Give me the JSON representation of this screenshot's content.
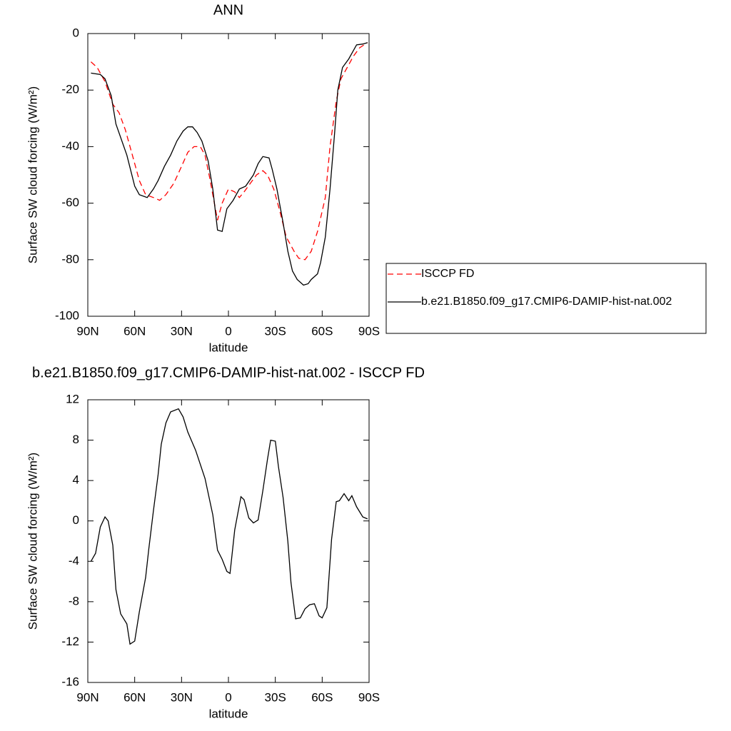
{
  "chart_data": [
    {
      "type": "line",
      "title": "ANN",
      "xlabel": "latitude",
      "ylabel": "Surface SW cloud forcing (W/m²)",
      "xlim": [
        90,
        -90
      ],
      "xticks": [
        {
          "value": 90,
          "label": "90N"
        },
        {
          "value": 60,
          "label": "60N"
        },
        {
          "value": 30,
          "label": "30N"
        },
        0,
        {
          "value": -30,
          "label": "30S"
        },
        {
          "value": -60,
          "label": "60S"
        },
        {
          "value": -90,
          "label": "90S"
        }
      ],
      "ylim": [
        -100,
        0
      ],
      "yticks": [
        0,
        -20,
        -40,
        -60,
        -80,
        -100
      ],
      "legend": "right",
      "series": [
        {
          "name": "ISCCP FD",
          "color": "#ff0000",
          "dash": true,
          "x": [
            88,
            84,
            79,
            74,
            70,
            66,
            61,
            57,
            53,
            48,
            44,
            40,
            35,
            30,
            26,
            22,
            18,
            15,
            12,
            7,
            4,
            0,
            -4,
            -7,
            -10,
            -14,
            -18,
            -22,
            -25,
            -29,
            -33,
            -37,
            -42,
            -45,
            -49,
            -53,
            -57,
            -62,
            -65,
            -69,
            -72,
            -76,
            -80,
            -84,
            -89
          ],
          "values": [
            -10,
            -12,
            -17,
            -25,
            -28,
            -34,
            -44,
            -52,
            -57,
            -58,
            -59,
            -57,
            -53,
            -47,
            -42,
            -40,
            -40,
            -43,
            -51,
            -66,
            -60,
            -55,
            -56,
            -58,
            -56,
            -53,
            -50,
            -48.5,
            -50,
            -55,
            -63,
            -72,
            -77,
            -79.5,
            -80,
            -77,
            -70,
            -58,
            -40,
            -24,
            -16,
            -12,
            -8,
            -5,
            -3.2
          ]
        },
        {
          "name": "b.e21.B1850.f09_g17.CMIP6-DAMIP-hist-nat.002",
          "color": "#000000",
          "dash": false,
          "x": [
            88,
            82,
            79,
            75,
            72,
            65,
            60,
            57,
            52,
            48,
            45,
            41,
            37,
            33,
            29,
            26,
            23,
            20,
            17,
            13,
            10,
            7,
            4,
            1,
            -3,
            -7,
            -11,
            -16,
            -19,
            -22,
            -26,
            -28,
            -31,
            -35,
            -38,
            -41,
            -44,
            -48,
            -51,
            -53,
            -57,
            -59,
            -62,
            -65,
            -68,
            -70,
            -73,
            -77,
            -79,
            -82,
            -86,
            -89
          ],
          "values": [
            -14,
            -14.5,
            -16,
            -22,
            -32,
            -43,
            -54,
            -57,
            -58,
            -55,
            -52,
            -47,
            -43,
            -38,
            -34.5,
            -33,
            -33,
            -35,
            -38,
            -45,
            -55,
            -69.5,
            -70,
            -62,
            -59,
            -55,
            -54,
            -50,
            -46,
            -43.5,
            -44,
            -48,
            -55,
            -67,
            -77,
            -84,
            -87,
            -89,
            -88.5,
            -87,
            -85,
            -81,
            -72,
            -55,
            -35,
            -20,
            -12,
            -9,
            -7,
            -4,
            -3.7,
            -3.2
          ]
        }
      ]
    },
    {
      "type": "line",
      "title": "b.e21.B1850.f09_g17.CMIP6-DAMIP-hist-nat.002 - ISCCP FD",
      "xlabel": "latitude",
      "ylabel": "Surface SW cloud forcing (W/m²)",
      "xlim": [
        90,
        -90
      ],
      "xticks": [
        {
          "value": 90,
          "label": "90N"
        },
        {
          "value": 60,
          "label": "60N"
        },
        {
          "value": 30,
          "label": "30N"
        },
        0,
        {
          "value": -30,
          "label": "30S"
        },
        {
          "value": -60,
          "label": "60S"
        },
        {
          "value": -90,
          "label": "90S"
        }
      ],
      "ylim": [
        -16,
        12
      ],
      "yticks": [
        12,
        8,
        4,
        0,
        -4,
        -8,
        -12,
        -16
      ],
      "series": [
        {
          "color": "#000000",
          "dash": false,
          "x": [
            88,
            85,
            82,
            79,
            77,
            74,
            72,
            69,
            65,
            63,
            60,
            57,
            53,
            51,
            48,
            45,
            43,
            40,
            37,
            32,
            29,
            26,
            21,
            15,
            10,
            7,
            4,
            1,
            -1,
            -4,
            -8,
            -10,
            -13,
            -16,
            -19,
            -22,
            -25,
            -27,
            -30,
            -32,
            -35,
            -38,
            -40,
            -43,
            -46,
            -49,
            -52,
            -55,
            -58,
            -60,
            -63,
            -66,
            -69,
            -71,
            -74,
            -77,
            -79,
            -82,
            -86,
            -89
          ],
          "values": [
            -4,
            -3.2,
            -0.6,
            0.4,
            0,
            -2.4,
            -6.8,
            -9.2,
            -10.2,
            -12.2,
            -11.9,
            -9,
            -5.6,
            -2.8,
            1,
            4.6,
            7.6,
            9.7,
            10.8,
            11.1,
            10.3,
            8.8,
            7,
            4.2,
            0.6,
            -2.9,
            -3.8,
            -5,
            -5.2,
            -0.9,
            2.4,
            2.1,
            0.3,
            -0.2,
            0.1,
            3,
            6.1,
            8,
            7.9,
            5.4,
            2.3,
            -2,
            -6.1,
            -9.7,
            -9.6,
            -8.7,
            -8.3,
            -8.2,
            -9.4,
            -9.6,
            -8.6,
            -1.8,
            1.9,
            2,
            2.7,
            2,
            2.5,
            1.4,
            0.4,
            0.2
          ]
        }
      ]
    }
  ]
}
